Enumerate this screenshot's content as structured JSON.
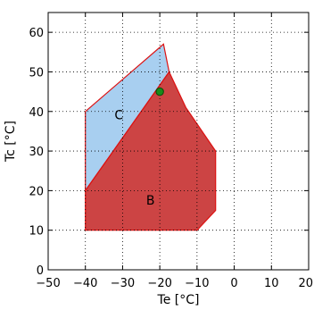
{
  "chart_data": {
    "type": "area",
    "title": "",
    "xlabel": "Te [°C]",
    "ylabel": "Tc [°C]",
    "xlim": [
      -50,
      20
    ],
    "ylim": [
      0,
      65
    ],
    "xticks": [
      -50,
      -40,
      -30,
      -20,
      -10,
      0,
      10,
      20
    ],
    "yticks": [
      0,
      10,
      20,
      30,
      40,
      50,
      60
    ],
    "xtick_labels": [
      "−50",
      "−40",
      "−30",
      "−20",
      "−10",
      "0",
      "10",
      "20"
    ],
    "ytick_labels": [
      "0",
      "10",
      "20",
      "30",
      "40",
      "50",
      "60"
    ],
    "grid": true,
    "regions": [
      {
        "label": "C",
        "color": "#a8cff0",
        "edge_color": "#dd1111",
        "label_at": [
          -31,
          38
        ],
        "points": [
          [
            -40,
            40
          ],
          [
            -19,
            57
          ],
          [
            -17.5,
            50
          ],
          [
            -40,
            20
          ]
        ]
      },
      {
        "label": "B",
        "color": "#cc4444",
        "edge_color": "#dd1111",
        "label_at": [
          -22.5,
          16.5
        ],
        "points": [
          [
            -40,
            20
          ],
          [
            -17.5,
            50
          ],
          [
            -13,
            41
          ],
          [
            -5,
            30
          ],
          [
            -5,
            15
          ],
          [
            -10,
            10
          ],
          [
            -40,
            10
          ]
        ]
      }
    ],
    "points": [
      {
        "x": -20,
        "y": 45,
        "color": "#1a8a1a",
        "edge_color": "#0a4a0a"
      }
    ]
  }
}
